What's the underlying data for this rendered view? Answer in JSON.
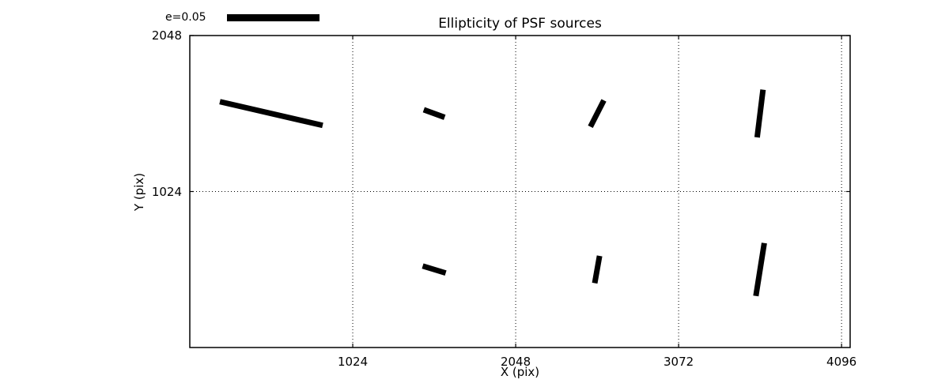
{
  "title": "Ellipticity of PSF sources",
  "axes": {
    "xlabel": "X (pix)",
    "ylabel": "Y (pix)"
  },
  "legend": {
    "label": "e=0.05",
    "reference_e": 0.05
  },
  "chart_data": {
    "type": "scatter",
    "variant": "ellipticity whisker (stick) plot",
    "title": "Ellipticity of PSF sources",
    "xlabel": "X (pix)",
    "ylabel": "Y (pix)",
    "xlim": [
      0,
      4150
    ],
    "ylim": [
      0,
      2048
    ],
    "x_ticks": [
      1024,
      2048,
      3072,
      4096
    ],
    "y_ticks": [
      1024,
      2048
    ],
    "grid": "dotted lines at major ticks",
    "legend": {
      "label": "e=0.05",
      "reference_e": 0.05,
      "position": "above axes, upper left"
    },
    "whiskers": [
      {
        "x": 512,
        "y": 1536,
        "e": 0.057,
        "angle_deg": -13
      },
      {
        "x": 1536,
        "y": 1536,
        "e": 0.012,
        "angle_deg": -20
      },
      {
        "x": 2560,
        "y": 1536,
        "e": 0.016,
        "angle_deg": 63
      },
      {
        "x": 3584,
        "y": 1536,
        "e": 0.026,
        "angle_deg": 83
      },
      {
        "x": 1536,
        "y": 512,
        "e": 0.013,
        "angle_deg": -17
      },
      {
        "x": 2560,
        "y": 512,
        "e": 0.015,
        "angle_deg": 80
      },
      {
        "x": 3584,
        "y": 512,
        "e": 0.029,
        "angle_deg": 81
      }
    ],
    "colors": {
      "whisker": "#000000",
      "grid": "#000000",
      "axes": "#000000",
      "background": "#ffffff"
    }
  }
}
